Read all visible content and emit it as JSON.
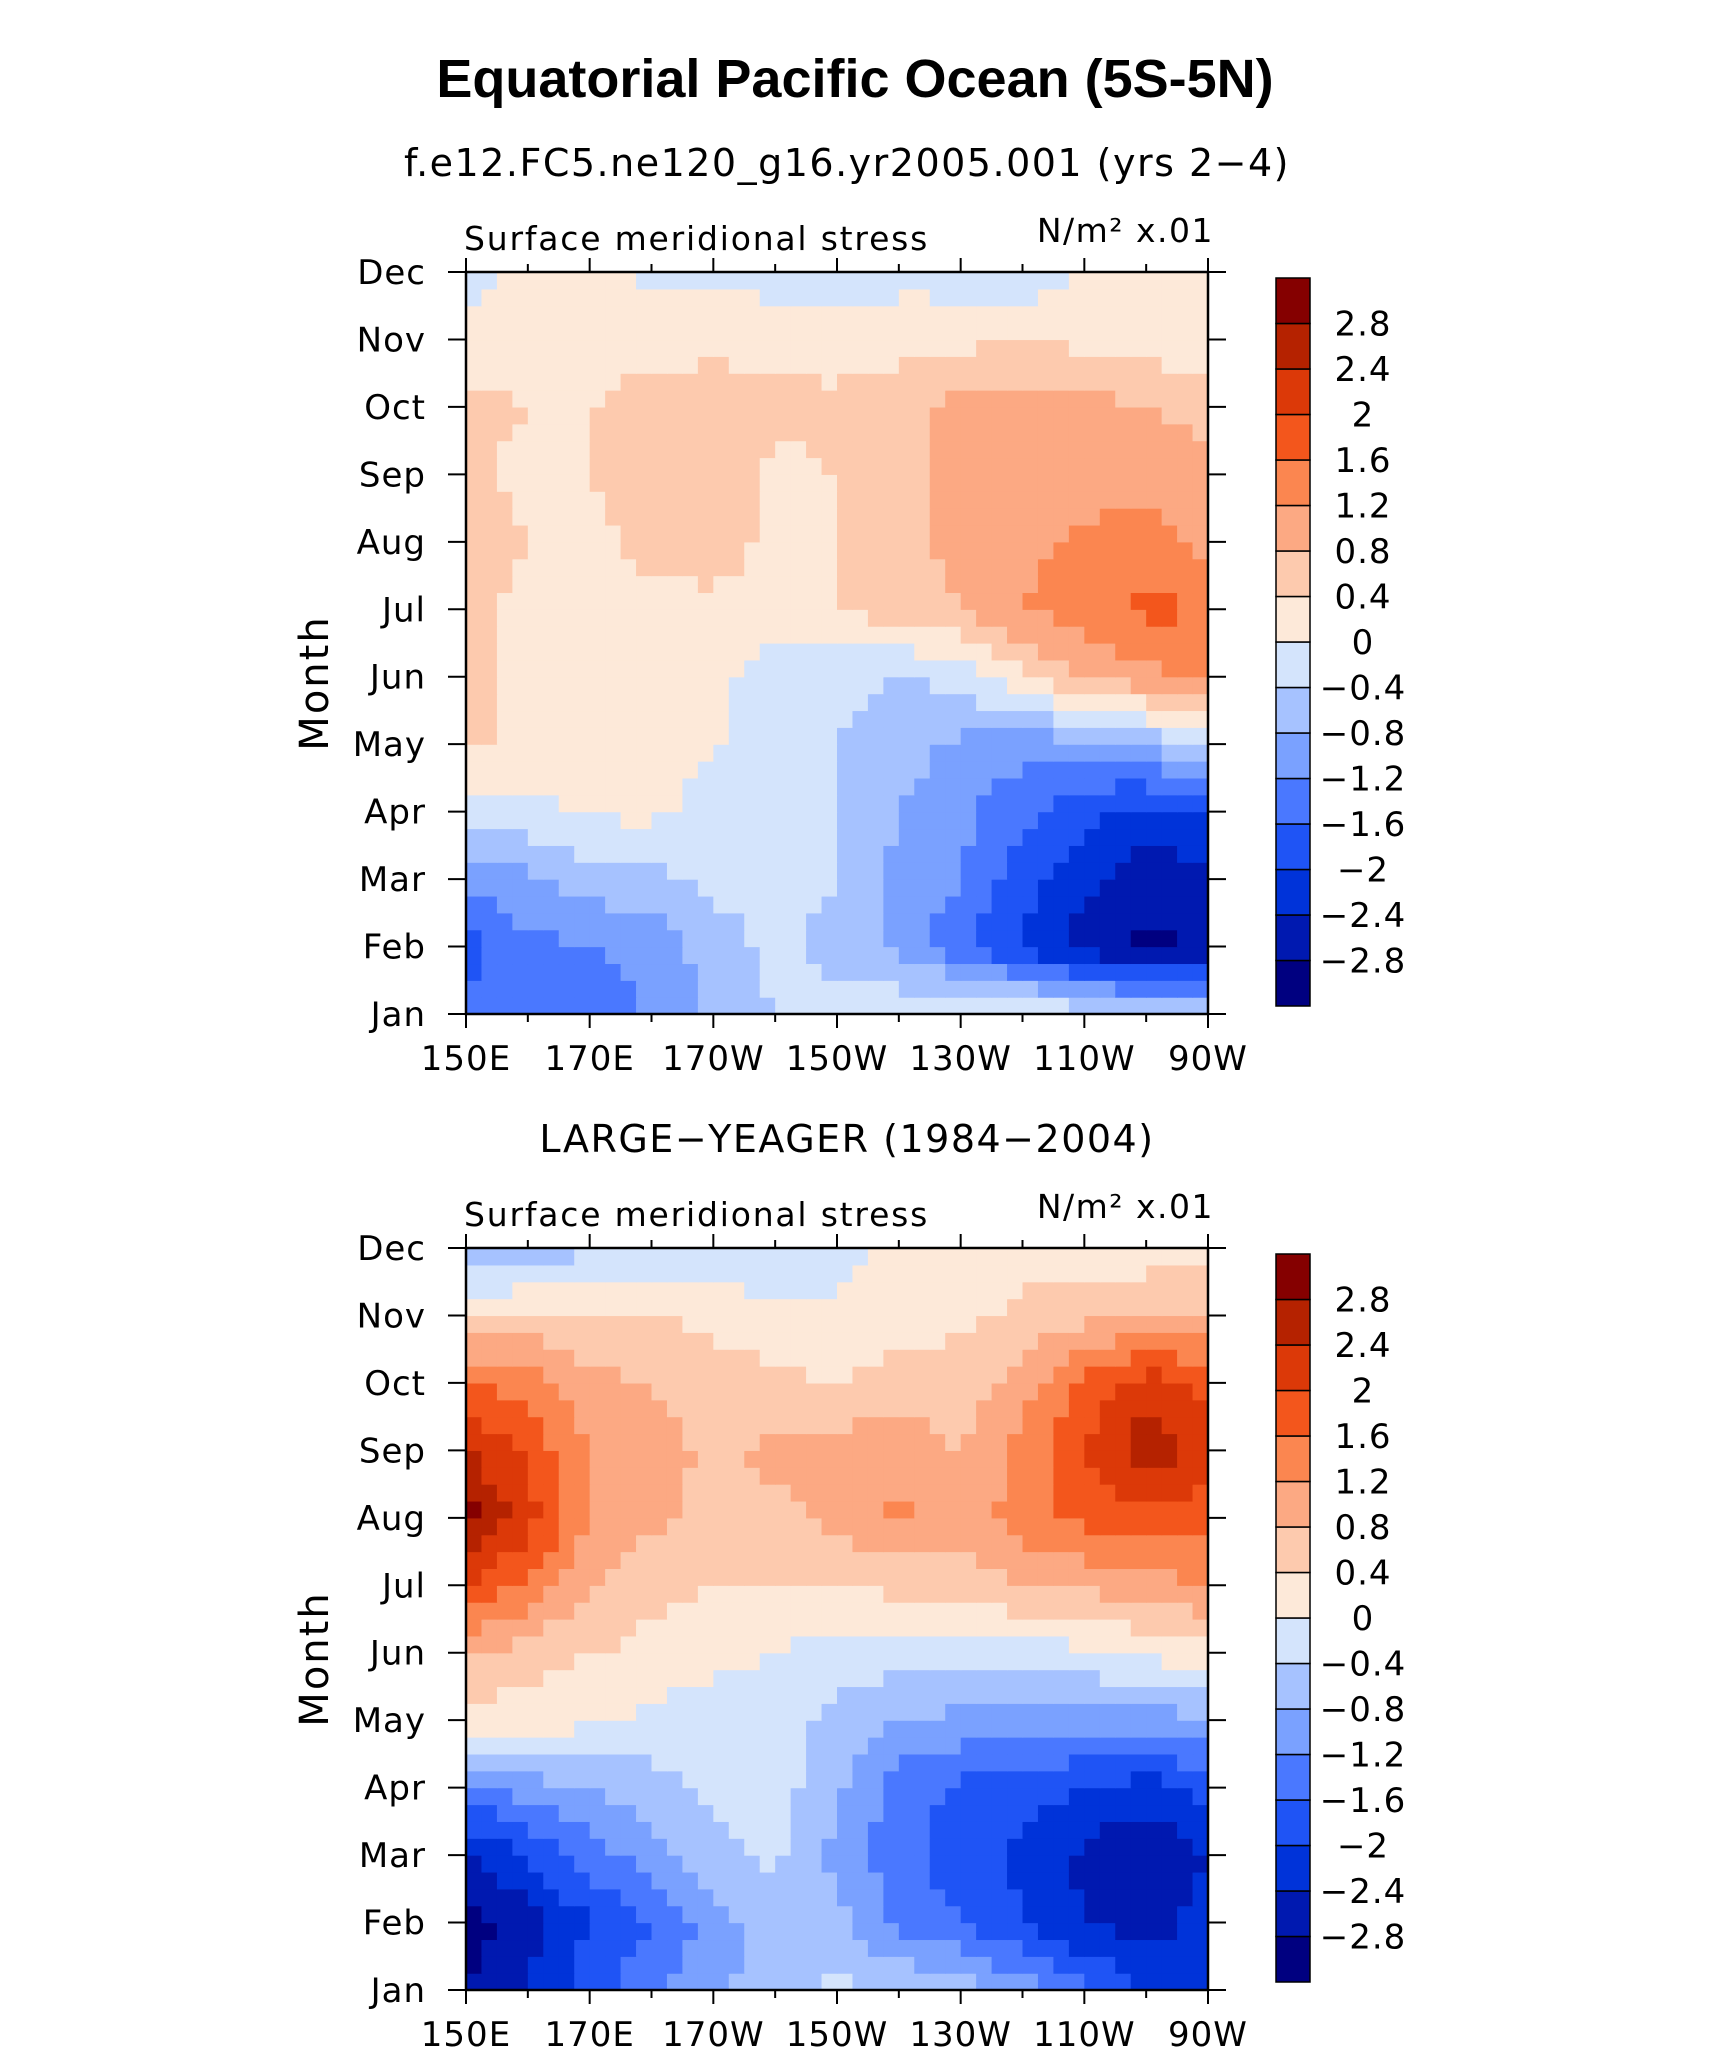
{
  "title": "Equatorial Pacific Ocean (5S-5N)",
  "colors": [
    "#000080",
    "#0019b0",
    "#0033d9",
    "#1f54f5",
    "#4a78ff",
    "#7aa1ff",
    "#a6c2ff",
    "#d4e4fc",
    "#fde9d9",
    "#fdcaae",
    "#fca983",
    "#fb8650",
    "#f3561c",
    "#dc3908",
    "#b52200",
    "#850000"
  ],
  "colorbar_labels": [
    "2.8",
    "2.4",
    "2",
    "1.6",
    "1.2",
    "0.8",
    "0.4",
    "0",
    "−0.4",
    "−0.8",
    "−1.2",
    "−1.6",
    "−2",
    "−2.4",
    "−2.8"
  ],
  "chart_data": [
    {
      "type": "heatmap",
      "title": "f.e12.FC5.ne120_g16.yr2005.001 (yrs 2−4)",
      "left_label": "Surface meridional stress",
      "units_label": "N/m² x.01",
      "ylabel": "Month",
      "xlabel": "",
      "x_ticks": [
        "150E",
        "170E",
        "170W",
        "150W",
        "130W",
        "110W",
        "90W"
      ],
      "y_ticks": [
        "Jan",
        "Feb",
        "Mar",
        "Apr",
        "May",
        "Jun",
        "Jul",
        "Aug",
        "Sep",
        "Oct",
        "Nov",
        "Dec"
      ],
      "levels": [
        -2.8,
        -2.4,
        -2,
        -1.6,
        -1.2,
        -0.8,
        -0.4,
        0,
        0.4,
        0.8,
        1.2,
        1.6,
        2,
        2.4,
        2.8
      ],
      "x_values": [
        "150E",
        "160E",
        "170E",
        "180",
        "170W",
        "160W",
        "150W",
        "140W",
        "130W",
        "120W",
        "110W",
        "100W",
        "90W"
      ],
      "rows": [
        {
          "month": "Jan",
          "values": [
            -1.4,
            -1.6,
            -1.5,
            -1.1,
            -0.7,
            -0.4,
            -0.3,
            -0.1,
            0.1,
            0.05,
            -0.2,
            -0.3,
            -0.4
          ]
        },
        {
          "month": "Feb",
          "values": [
            -1.8,
            -1.3,
            -1.2,
            -1.1,
            -0.6,
            -0.3,
            -0.5,
            -0.9,
            -1.5,
            -2.1,
            -2.6,
            -2.9,
            -2.7
          ]
        },
        {
          "month": "Mar",
          "values": [
            -1.1,
            -0.9,
            -0.6,
            -0.5,
            -0.3,
            -0.3,
            -0.4,
            -0.9,
            -1.2,
            -1.8,
            -2.3,
            -2.7,
            -2.5
          ]
        },
        {
          "month": "Apr",
          "values": [
            -0.2,
            -0.1,
            0.05,
            0.1,
            -0.2,
            -0.3,
            -0.4,
            -0.8,
            -1.1,
            -1.5,
            -1.9,
            -2.2,
            -1.9
          ]
        },
        {
          "month": "May",
          "values": [
            0.5,
            0.3,
            0.3,
            0.2,
            0.05,
            -0.3,
            -0.4,
            -0.6,
            -0.9,
            -1.0,
            -1.0,
            -0.7,
            -0.3
          ]
        },
        {
          "month": "Jun",
          "values": [
            0.5,
            0.3,
            0.3,
            0.3,
            0.1,
            -0.2,
            -0.3,
            -0.4,
            -0.3,
            0.3,
            0.9,
            1.1,
            1.3
          ]
        },
        {
          "month": "Jul",
          "values": [
            0.5,
            0.3,
            0.3,
            0.3,
            0.3,
            0.2,
            0.4,
            0.6,
            0.8,
            1.2,
            1.4,
            1.7,
            1.6
          ]
        },
        {
          "month": "Aug",
          "values": [
            0.6,
            0.4,
            0.3,
            0.5,
            0.6,
            0.3,
            0.4,
            0.7,
            0.9,
            1.1,
            1.3,
            1.3,
            1.1
          ]
        },
        {
          "month": "Sep",
          "values": [
            0.5,
            0.3,
            0.4,
            0.6,
            0.6,
            0.3,
            0.4,
            0.7,
            0.9,
            1.0,
            1.0,
            1.1,
            1.0
          ]
        },
        {
          "month": "Oct",
          "values": [
            0.5,
            0.4,
            0.4,
            0.5,
            0.6,
            0.5,
            0.5,
            0.7,
            0.9,
            1.0,
            1.0,
            0.8,
            0.6
          ]
        },
        {
          "month": "Nov",
          "values": [
            0.1,
            0.3,
            0.3,
            0.3,
            0.3,
            0.3,
            0.2,
            0.2,
            0.3,
            0.4,
            0.3,
            0.2,
            0.1
          ]
        },
        {
          "month": "Dec",
          "values": [
            -0.2,
            0.2,
            0.1,
            -0.1,
            -0.1,
            -0.2,
            -0.3,
            -0.1,
            -0.2,
            -0.3,
            0.05,
            0.2,
            0.2
          ]
        }
      ]
    },
    {
      "type": "heatmap",
      "title": "LARGE−YEAGER (1984−2004)",
      "left_label": "Surface meridional stress",
      "units_label": "N/m² x.01",
      "ylabel": "Month",
      "xlabel": "",
      "x_ticks": [
        "150E",
        "170E",
        "170W",
        "150W",
        "130W",
        "110W",
        "90W"
      ],
      "y_ticks": [
        "Jan",
        "Feb",
        "Mar",
        "Apr",
        "May",
        "Jun",
        "Jul",
        "Aug",
        "Sep",
        "Oct",
        "Nov",
        "Dec"
      ],
      "levels": [
        -2.8,
        -2.4,
        -2,
        -1.6,
        -1.2,
        -0.8,
        -0.4,
        0,
        0.4,
        0.8,
        1.2,
        1.6,
        2,
        2.4,
        2.8
      ],
      "x_values": [
        "150E",
        "160E",
        "170E",
        "180",
        "170W",
        "160W",
        "150W",
        "140W",
        "130W",
        "120W",
        "110W",
        "100W",
        "90W"
      ],
      "rows": [
        {
          "month": "Jan",
          "values": [
            -2.8,
            -2.4,
            -1.8,
            -1.3,
            -0.9,
            -0.6,
            -0.3,
            -0.4,
            -0.6,
            -1.0,
            -1.5,
            -2.0,
            -2.3
          ]
        },
        {
          "month": "Feb",
          "values": [
            -3.0,
            -2.6,
            -2.0,
            -1.6,
            -1.0,
            -0.6,
            -0.7,
            -1.3,
            -1.6,
            -2.0,
            -2.4,
            -2.6,
            -2.2
          ]
        },
        {
          "month": "Mar",
          "values": [
            -2.5,
            -2.0,
            -1.4,
            -1.0,
            -0.5,
            -0.3,
            -0.9,
            -1.5,
            -1.8,
            -2.1,
            -2.5,
            -2.8,
            -2.4
          ]
        },
        {
          "month": "Apr",
          "values": [
            -1.3,
            -1.0,
            -0.8,
            -0.6,
            -0.3,
            -0.2,
            -0.7,
            -1.4,
            -1.7,
            -1.8,
            -2.0,
            -2.2,
            -1.8
          ]
        },
        {
          "month": "May",
          "values": [
            0.2,
            0.2,
            0.1,
            -0.1,
            -0.2,
            -0.3,
            -0.5,
            -0.8,
            -0.9,
            -1.0,
            -1.0,
            -1.0,
            -0.9
          ]
        },
        {
          "month": "Jun",
          "values": [
            0.9,
            0.6,
            0.4,
            0.3,
            0.1,
            0.0,
            -0.2,
            -0.2,
            -0.3,
            -0.2,
            -0.1,
            0.1,
            0.2
          ]
        },
        {
          "month": "Jul",
          "values": [
            2.0,
            1.5,
            0.8,
            0.5,
            0.4,
            0.4,
            0.4,
            0.5,
            0.6,
            0.8,
            0.9,
            1.0,
            1.2
          ]
        },
        {
          "month": "Aug",
          "values": [
            3.0,
            2.2,
            1.2,
            0.9,
            0.6,
            0.7,
            0.9,
            1.3,
            1.0,
            1.4,
            1.7,
            1.8,
            1.7
          ]
        },
        {
          "month": "Sep",
          "values": [
            2.4,
            1.9,
            1.2,
            1.0,
            0.7,
            0.9,
            1.0,
            1.0,
            0.8,
            1.3,
            2.0,
            2.7,
            2.3
          ]
        },
        {
          "month": "Oct",
          "values": [
            1.7,
            1.4,
            0.9,
            0.8,
            0.6,
            0.5,
            0.4,
            0.6,
            0.6,
            1.0,
            1.7,
            2.2,
            1.9
          ]
        },
        {
          "month": "Nov",
          "values": [
            0.4,
            0.5,
            0.5,
            0.4,
            0.3,
            0.1,
            0.1,
            0.2,
            0.3,
            0.5,
            0.7,
            0.9,
            0.8
          ]
        },
        {
          "month": "Dec",
          "values": [
            -0.9,
            -0.7,
            -0.5,
            -0.4,
            -0.3,
            -0.3,
            -0.2,
            0.2,
            0.1,
            0.2,
            0.2,
            0.1,
            0.2
          ]
        }
      ]
    }
  ]
}
